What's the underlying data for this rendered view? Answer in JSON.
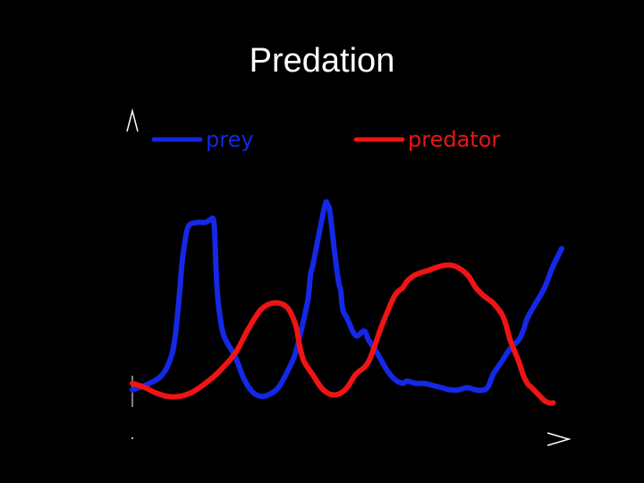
{
  "slide": {
    "title": "Predation"
  },
  "chart_data": {
    "type": "line",
    "title": "",
    "xlabel": "",
    "ylabel": "",
    "xlim": [
      0,
      100
    ],
    "ylim": [
      0,
      100
    ],
    "grid": false,
    "legend": "top",
    "series": [
      {
        "name": "prey",
        "color": "#1428e6",
        "x": [
          0,
          4,
          7,
          9,
          10,
          11,
          11.5,
          12,
          13,
          15,
          17,
          18,
          19,
          19.5,
          20,
          21,
          22,
          24,
          26,
          28,
          30,
          32,
          34,
          36,
          38,
          40,
          41,
          41.5,
          42,
          43,
          44,
          45,
          45.5,
          46,
          47,
          48,
          48.5,
          49,
          50,
          52,
          54,
          55,
          57,
          59,
          61,
          63,
          64,
          66,
          68,
          70,
          72,
          74,
          76,
          78,
          80,
          82,
          83,
          84,
          86,
          88,
          90,
          91,
          92,
          94,
          96,
          98,
          100
        ],
        "y": [
          5,
          8,
          12,
          20,
          30,
          50,
          62,
          70,
          80,
          82,
          82,
          83,
          82,
          60,
          45,
          32,
          27,
          20,
          10,
          4,
          2,
          3,
          6,
          13,
          22,
          38,
          48,
          58,
          62,
          72,
          82,
          91,
          90,
          87,
          70,
          55,
          51,
          42,
          38,
          30,
          32,
          28,
          22,
          15,
          10,
          8,
          9,
          8,
          8,
          7,
          6,
          5,
          5,
          6,
          5,
          5,
          7,
          12,
          18,
          24,
          28,
          32,
          38,
          45,
          52,
          62,
          70
        ]
      },
      {
        "name": "predator",
        "color": "#f01414",
        "x": [
          0,
          3,
          5,
          8,
          11,
          14,
          17,
          20,
          24,
          27,
          30,
          33,
          36,
          38,
          39,
          40,
          42,
          44,
          46,
          48,
          50,
          52,
          55,
          58,
          61,
          63,
          64,
          66,
          69,
          72,
          75,
          78,
          80,
          82,
          84,
          86,
          87,
          88,
          90,
          91,
          92,
          93,
          94,
          95,
          96,
          97,
          98
        ],
        "y": [
          8,
          6,
          4,
          2,
          2,
          4,
          8,
          13,
          22,
          33,
          42,
          45,
          43,
          35,
          25,
          18,
          12,
          6,
          3,
          3,
          6,
          12,
          18,
          34,
          48,
          52,
          55,
          58,
          60,
          62,
          62,
          58,
          52,
          48,
          45,
          40,
          35,
          28,
          18,
          12,
          8,
          6,
          4,
          2,
          0,
          -1,
          -1
        ]
      }
    ]
  }
}
